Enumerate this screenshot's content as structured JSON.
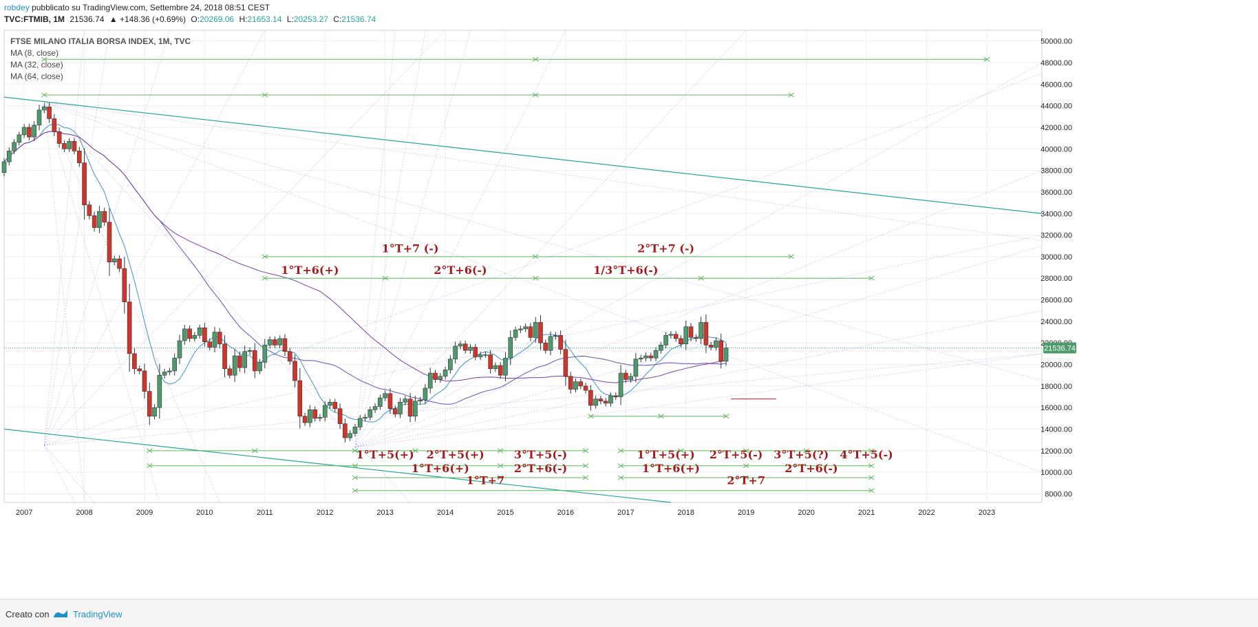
{
  "header": {
    "author": "robdey",
    "published": "pubblicato su TradingView.com, Settembre 24, 2018 08:51 CEST",
    "symbol": "TVC:FTMIB, 1M",
    "last": "21536.74",
    "change": "▲ +148.36 (+0.69%)",
    "open_label": "O:",
    "open": "20269.06",
    "high_label": "H:",
    "high": "21653.14",
    "low_label": "L:",
    "low": "20253.27",
    "close_label": "C:",
    "close": "21536.74"
  },
  "legend": {
    "title": "FTSE MILANO ITALIA BORSA INDEX, 1M, TVC",
    "ma1": "MA (8, close)",
    "ma2": "MA (32, close)",
    "ma3": "MA (64, close)"
  },
  "footer": {
    "created_with": "Creato con",
    "brand": "TradingView"
  },
  "colors": {
    "up": "#4e9a6c",
    "down": "#d0352b",
    "ma8": "#3a93c8",
    "ma32": "#6a4cc0",
    "ma64": "#7a3ea8",
    "trend": "#26a69a",
    "cycle": "#5cb85c",
    "cycle_label": "#a21b1b",
    "gann": "#9a8ee6",
    "price_badge": "#4e9a6c"
  },
  "chart_data": {
    "type": "candlestick",
    "title": "FTSE MILANO ITALIA BORSA INDEX, 1M, TVC",
    "x_axis": {
      "type": "time",
      "range": [
        "2006-09",
        "2023-12"
      ],
      "ticks": [
        "2007",
        "2008",
        "2009",
        "2010",
        "2011",
        "2012",
        "2013",
        "2014",
        "2015",
        "2016",
        "2017",
        "2018",
        "2019",
        "2020",
        "2021",
        "2022",
        "2023"
      ]
    },
    "y_axis": {
      "range": [
        7200,
        51000
      ],
      "position": "right",
      "ticks": [
        "8000.00",
        "10000.00",
        "12000.00",
        "14000.00",
        "16000.00",
        "18000.00",
        "20000.00",
        "22000.00",
        "24000.00",
        "26000.00",
        "28000.00",
        "30000.00",
        "32000.00",
        "34000.00",
        "36000.00",
        "38000.00",
        "40000.00",
        "42000.00",
        "44000.00",
        "46000.00",
        "48000.00",
        "50000.00"
      ]
    },
    "last_price": "21536.74",
    "candles": [
      [
        "2006-09",
        37800,
        38800
      ],
      [
        "2006-10",
        38800,
        39800
      ],
      [
        "2006-11",
        39800,
        40600
      ],
      [
        "2006-12",
        40600,
        41300
      ],
      [
        "2007-01",
        41300,
        42000
      ],
      [
        "2007-02",
        42000,
        41100
      ],
      [
        "2007-03",
        41100,
        42200
      ],
      [
        "2007-04",
        42200,
        43600
      ],
      [
        "2007-05",
        43600,
        43900
      ],
      [
        "2007-06",
        43900,
        42800
      ],
      [
        "2007-07",
        42800,
        41600
      ],
      [
        "2007-08",
        41600,
        40500
      ],
      [
        "2007-09",
        40500,
        40000
      ],
      [
        "2007-10",
        40000,
        40700
      ],
      [
        "2007-11",
        40700,
        39800
      ],
      [
        "2007-12",
        39800,
        38700
      ],
      [
        "2008-01",
        38700,
        34800
      ],
      [
        "2008-02",
        34800,
        33800
      ],
      [
        "2008-03",
        33800,
        32700
      ],
      [
        "2008-04",
        32700,
        34200
      ],
      [
        "2008-05",
        34200,
        33200
      ],
      [
        "2008-06",
        33200,
        29500
      ],
      [
        "2008-07",
        29500,
        29800
      ],
      [
        "2008-08",
        29800,
        28900
      ],
      [
        "2008-09",
        28900,
        25800
      ],
      [
        "2008-10",
        25800,
        21000
      ],
      [
        "2008-11",
        21000,
        19600
      ],
      [
        "2008-12",
        19600,
        19400
      ],
      [
        "2009-01",
        19400,
        17500
      ],
      [
        "2009-02",
        17500,
        15200
      ],
      [
        "2009-03",
        15200,
        16000
      ],
      [
        "2009-04",
        16000,
        19000
      ],
      [
        "2009-05",
        19000,
        19300
      ],
      [
        "2009-06",
        19300,
        19400
      ],
      [
        "2009-07",
        19400,
        20600
      ],
      [
        "2009-08",
        20600,
        22200
      ],
      [
        "2009-09",
        22200,
        23300
      ],
      [
        "2009-10",
        23300,
        22400
      ],
      [
        "2009-11",
        22400,
        22700
      ],
      [
        "2009-12",
        22700,
        23400
      ],
      [
        "2010-01",
        23400,
        22100
      ],
      [
        "2010-02",
        22100,
        21600
      ],
      [
        "2010-03",
        21600,
        23000
      ],
      [
        "2010-04",
        23000,
        21900
      ],
      [
        "2010-05",
        21900,
        19600
      ],
      [
        "2010-06",
        19600,
        19000
      ],
      [
        "2010-07",
        19000,
        20800
      ],
      [
        "2010-08",
        20800,
        19700
      ],
      [
        "2010-09",
        19700,
        21200
      ],
      [
        "2010-10",
        21200,
        21300
      ],
      [
        "2010-11",
        21300,
        19400
      ],
      [
        "2010-12",
        19400,
        20200
      ],
      [
        "2011-01",
        20200,
        21800
      ],
      [
        "2011-02",
        21800,
        22300
      ],
      [
        "2011-03",
        22300,
        21800
      ],
      [
        "2011-04",
        21800,
        22400
      ],
      [
        "2011-05",
        22400,
        21200
      ],
      [
        "2011-06",
        21200,
        20300
      ],
      [
        "2011-07",
        20300,
        18500
      ],
      [
        "2011-08",
        18500,
        15200
      ],
      [
        "2011-09",
        15200,
        14600
      ],
      [
        "2011-10",
        14600,
        15800
      ],
      [
        "2011-11",
        15800,
        15000
      ],
      [
        "2011-12",
        15000,
        15100
      ],
      [
        "2012-01",
        15100,
        16200
      ],
      [
        "2012-02",
        16200,
        16500
      ],
      [
        "2012-03",
        16500,
        15900
      ],
      [
        "2012-04",
        15900,
        14500
      ],
      [
        "2012-05",
        14500,
        13200
      ],
      [
        "2012-06",
        13200,
        13600
      ],
      [
        "2012-07",
        13600,
        14200
      ],
      [
        "2012-08",
        14200,
        15000
      ],
      [
        "2012-09",
        15000,
        15100
      ],
      [
        "2012-10",
        15100,
        15800
      ],
      [
        "2012-11",
        15800,
        16100
      ],
      [
        "2012-12",
        16100,
        16900
      ],
      [
        "2013-01",
        16900,
        17300
      ],
      [
        "2013-02",
        17300,
        15900
      ],
      [
        "2013-03",
        15900,
        15400
      ],
      [
        "2013-04",
        15400,
        16500
      ],
      [
        "2013-05",
        16500,
        16800
      ],
      [
        "2013-06",
        16800,
        15200
      ],
      [
        "2013-07",
        15200,
        16600
      ],
      [
        "2013-08",
        16600,
        16700
      ],
      [
        "2013-09",
        16700,
        17800
      ],
      [
        "2013-10",
        17800,
        19200
      ],
      [
        "2013-11",
        19200,
        18600
      ],
      [
        "2013-12",
        18600,
        18900
      ],
      [
        "2014-01",
        18900,
        19500
      ],
      [
        "2014-02",
        19500,
        20500
      ],
      [
        "2014-03",
        20500,
        21700
      ],
      [
        "2014-04",
        21700,
        21900
      ],
      [
        "2014-05",
        21900,
        21300
      ],
      [
        "2014-06",
        21300,
        21600
      ],
      [
        "2014-07",
        21600,
        20700
      ],
      [
        "2014-08",
        20700,
        20900
      ],
      [
        "2014-09",
        20900,
        20900
      ],
      [
        "2014-10",
        20900,
        19600
      ],
      [
        "2014-11",
        19600,
        19900
      ],
      [
        "2014-12",
        19900,
        19000
      ],
      [
        "2015-01",
        19000,
        20600
      ],
      [
        "2015-02",
        20600,
        22500
      ],
      [
        "2015-03",
        22500,
        23200
      ],
      [
        "2015-04",
        23200,
        23300
      ],
      [
        "2015-05",
        23300,
        23500
      ],
      [
        "2015-06",
        23500,
        22500
      ],
      [
        "2015-07",
        22500,
        23900
      ],
      [
        "2015-08",
        23900,
        22000
      ],
      [
        "2015-09",
        22000,
        21300
      ],
      [
        "2015-10",
        21300,
        22600
      ],
      [
        "2015-11",
        22600,
        22700
      ],
      [
        "2015-12",
        22700,
        21400
      ],
      [
        "2016-01",
        21400,
        18900
      ],
      [
        "2016-02",
        18900,
        17700
      ],
      [
        "2016-03",
        17700,
        18400
      ],
      [
        "2016-04",
        18400,
        18000
      ],
      [
        "2016-05",
        18000,
        17600
      ],
      [
        "2016-06",
        17600,
        16200
      ],
      [
        "2016-07",
        16200,
        16800
      ],
      [
        "2016-08",
        16800,
        16600
      ],
      [
        "2016-09",
        16600,
        16400
      ],
      [
        "2016-10",
        16400,
        17100
      ],
      [
        "2016-11",
        17100,
        17000
      ],
      [
        "2016-12",
        17000,
        19200
      ],
      [
        "2017-01",
        19200,
        18600
      ],
      [
        "2017-02",
        18600,
        18900
      ],
      [
        "2017-03",
        18900,
        20500
      ],
      [
        "2017-04",
        20500,
        20600
      ],
      [
        "2017-05",
        20600,
        20800
      ],
      [
        "2017-06",
        20800,
        20600
      ],
      [
        "2017-07",
        20600,
        21300
      ],
      [
        "2017-08",
        21300,
        21800
      ],
      [
        "2017-09",
        21800,
        22700
      ],
      [
        "2017-10",
        22700,
        22800
      ],
      [
        "2017-11",
        22800,
        22400
      ],
      [
        "2017-12",
        22400,
        21900
      ],
      [
        "2018-01",
        21900,
        23500
      ],
      [
        "2018-02",
        23500,
        22500
      ],
      [
        "2018-03",
        22500,
        22400
      ],
      [
        "2018-04",
        22400,
        23900
      ],
      [
        "2018-05",
        23900,
        21800
      ],
      [
        "2018-06",
        21800,
        21600
      ],
      [
        "2018-07",
        21600,
        22200
      ],
      [
        "2018-08",
        22200,
        20300
      ],
      [
        "2018-09",
        20300,
        21537
      ]
    ],
    "annotations": [
      "1°T+7 (-)",
      "2°T+7 (-)",
      "1°T+6(+)",
      "2°T+6(-)",
      "1/3°T+6(-)",
      "1°T+5(+)",
      "2°T+5(+)",
      "3°T+5(-)",
      "1°T+5(+)",
      "2°T+5(-)",
      "3°T+5(?)",
      "4°T+5(-)",
      "1°T+6(+)",
      "2°T+6(-)",
      "1°T+6(+)",
      "2°T+6(-)",
      "1°T+7",
      "2°T+7"
    ],
    "indicators": [
      "MA (8, close)",
      "MA (32, close)",
      "MA (64, close)"
    ]
  }
}
